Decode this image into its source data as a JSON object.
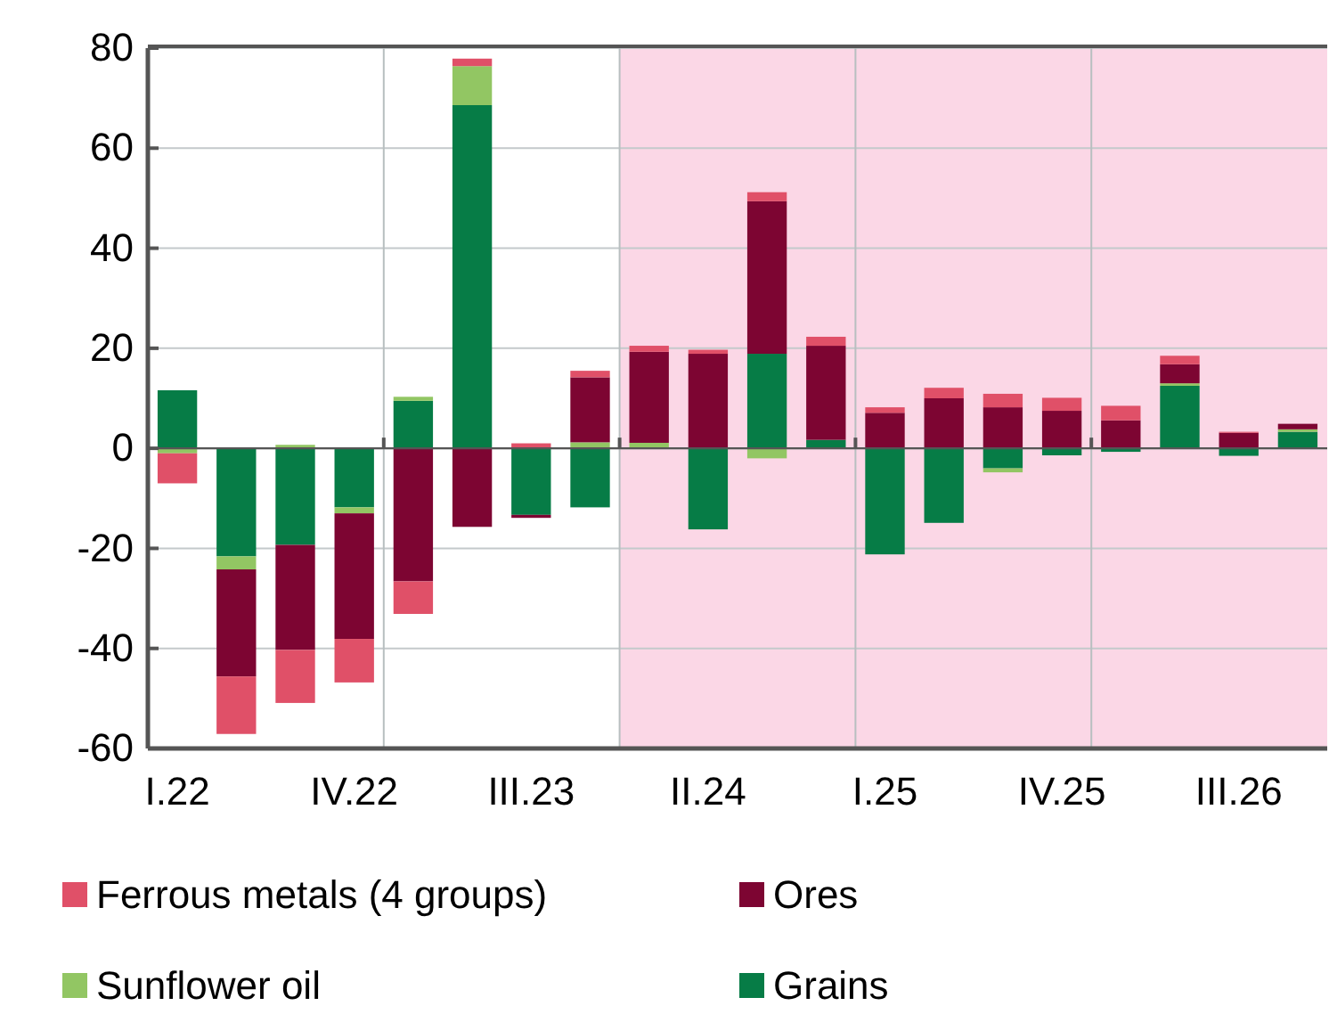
{
  "chart_data": {
    "type": "bar",
    "stacked": true,
    "categories": [
      "I.22",
      null,
      null,
      "IV.22",
      null,
      null,
      "III.23",
      null,
      null,
      "II.24",
      null,
      null,
      "I.25",
      null,
      null,
      "IV.25",
      null,
      null,
      "III.26",
      null
    ],
    "series": [
      {
        "name": "Grains",
        "color": "#067c46",
        "values": [
          11.6,
          -21.6,
          -19.3,
          -11.8,
          9.5,
          68.6,
          -13.3,
          -11.8,
          0,
          -16.2,
          18.9,
          1.7,
          -21.2,
          -14.9,
          -4.0,
          -1.4,
          -0.7,
          12.5,
          -1.5,
          3.3
        ]
      },
      {
        "name": "Sunflower oil",
        "color": "#92c663",
        "values": [
          -1,
          -2.6,
          0.7,
          -1.2,
          0.8,
          7.8,
          0,
          1.2,
          1.1,
          0,
          -2.0,
          0,
          0,
          0,
          -0.8,
          0,
          0,
          0.5,
          0,
          0.5
        ]
      },
      {
        "name": "Ores",
        "color": "#7d0532",
        "values": [
          0,
          -21.4,
          -21,
          -25.1,
          -26.6,
          -15.7,
          -0.6,
          13,
          18.2,
          18.9,
          30.5,
          18.8,
          7.1,
          10,
          8.2,
          7.5,
          5.6,
          3.8,
          3.1,
          1.1
        ]
      },
      {
        "name": "Ferrous metals (4 groups)",
        "color": "#e05068",
        "values": [
          -6,
          -11.5,
          -10.6,
          -8.7,
          -6.5,
          1.5,
          1,
          1.3,
          1.2,
          0.8,
          1.8,
          1.8,
          1.1,
          2.1,
          2.7,
          2.6,
          2.9,
          1.7,
          0.2,
          0
        ]
      }
    ],
    "ylim": [
      -60,
      80
    ],
    "yticks": [
      -60,
      -40,
      -20,
      0,
      20,
      40,
      60,
      80
    ],
    "grid": true,
    "legend": "bottom"
  }
}
